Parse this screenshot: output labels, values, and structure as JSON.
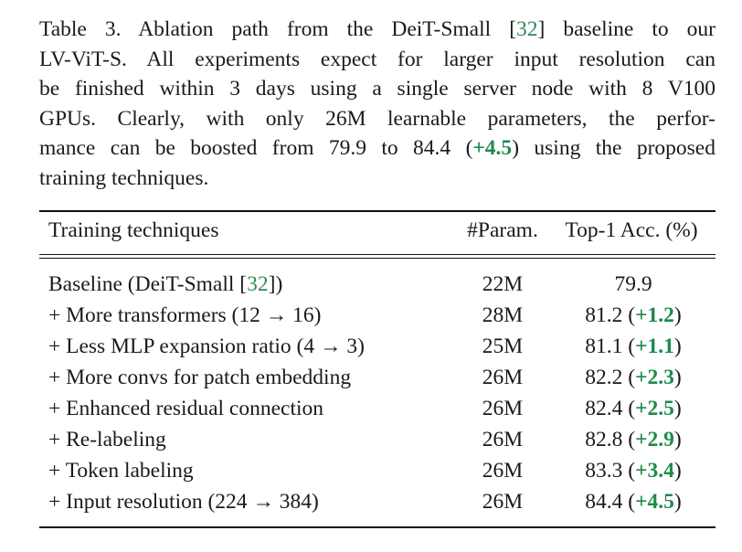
{
  "caption": {
    "lines": [
      [
        "Table 3. Ablation path from the DeiT-Small ",
        "[",
        "32",
        "]",
        " baseline to our"
      ],
      [
        "LV-ViT-S. All experiments expect for larger input resolution can"
      ],
      [
        "be finished within 3 days using a single server node with 8 V100"
      ],
      [
        "GPUs.  Clearly, with only 26M learnable parameters, the perfor-"
      ],
      [
        "mance can be boosted from 79.9 to 84.4 (",
        "+4.5",
        ") using the proposed"
      ],
      [
        "training techniques."
      ]
    ]
  },
  "table": {
    "headers": [
      "Training techniques",
      "#Param.",
      "Top-1 Acc. (%)"
    ],
    "rows": [
      {
        "pre": "Baseline (DeiT-Small ",
        "lb": "[",
        "cite": "32",
        "rb": "]",
        "post": ")",
        "param": "22M",
        "acc": "79.9",
        "gain": ""
      },
      {
        "pre": "+ More transformers (12 → 16)",
        "param": "28M",
        "acc": "81.2",
        "gain": "+1.2"
      },
      {
        "pre": "+ Less MLP expansion ratio (4 → 3)",
        "param": "25M",
        "acc": "81.1",
        "gain": "+1.1"
      },
      {
        "pre": "+ More convs for patch embedding",
        "param": "26M",
        "acc": "82.2",
        "gain": "+2.3"
      },
      {
        "pre": "+ Enhanced residual connection",
        "param": "26M",
        "acc": "82.4",
        "gain": "+2.5"
      },
      {
        "pre": "+ Re-labeling",
        "param": "26M",
        "acc": "82.8",
        "gain": "+2.9"
      },
      {
        "pre": "+ Token labeling",
        "param": "26M",
        "acc": "83.3",
        "gain": "+3.4"
      },
      {
        "pre": "+ Input resolution (224 → 384)",
        "param": "26M",
        "acc": "84.4",
        "gain": "+4.5"
      }
    ]
  },
  "colors": {
    "citation": "#2e8b57",
    "gain": "#1e8a4c"
  }
}
